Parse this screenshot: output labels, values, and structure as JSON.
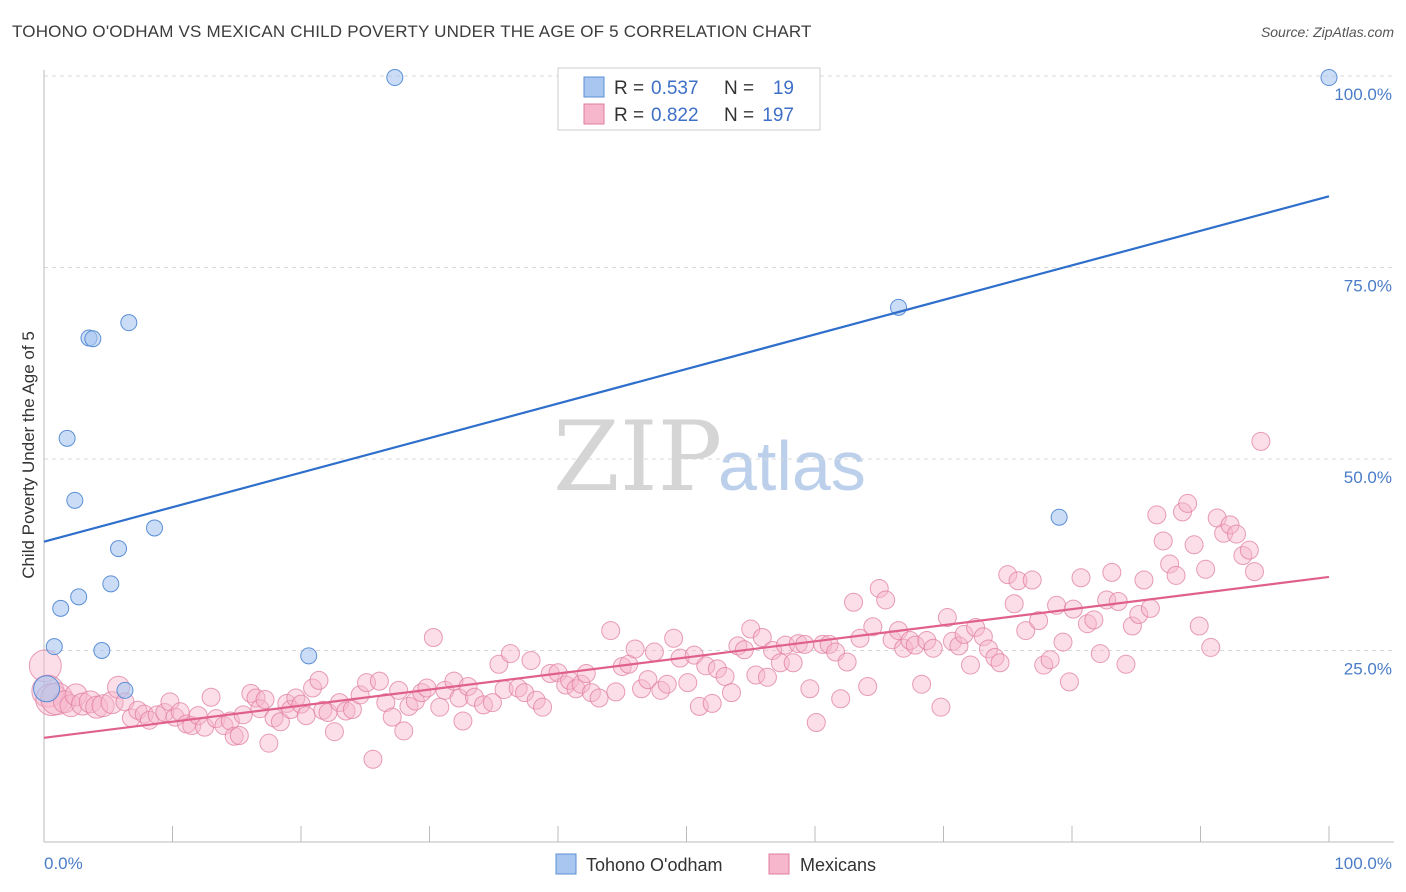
{
  "header": {
    "title": "TOHONO O'ODHAM VS MEXICAN CHILD POVERTY UNDER THE AGE OF 5 CORRELATION CHART",
    "source": "Source: ZipAtlas.com"
  },
  "watermark": {
    "zip": "ZIP",
    "atlas": "atlas"
  },
  "colors": {
    "blue_fill": "#a9c6f0",
    "blue_stroke": "#5b8fd6",
    "blue_line": "#2f6fcc",
    "pink_fill": "#f6b6cb",
    "pink_stroke": "#e07ea0",
    "pink_line": "#e0608c",
    "tick_label": "#4a7cc7",
    "grid": "#d8d8d8"
  },
  "legend": {
    "rows": [
      {
        "r_label": "R = ",
        "r_value": "0.537",
        "n_label": "N = ",
        "n_value": "19",
        "series": "blue"
      },
      {
        "r_label": "R = ",
        "r_value": "0.822",
        "n_label": "N = ",
        "n_value": "197",
        "series": "pink"
      }
    ]
  },
  "chart_data": {
    "type": "scatter",
    "title": "TOHONO O'ODHAM VS MEXICAN CHILD POVERTY UNDER THE AGE OF 5 CORRELATION CHART",
    "xlabel": "",
    "ylabel": "Child Poverty Under the Age of 5",
    "xlim": [
      0,
      100
    ],
    "ylim": [
      0,
      100
    ],
    "x_tick_labels": [
      "0.0%",
      "100.0%"
    ],
    "y_ticks": [
      {
        "value": 25,
        "label": "25.0%"
      },
      {
        "value": 50,
        "label": "50.0%"
      },
      {
        "value": 75,
        "label": "75.0%"
      },
      {
        "value": 100,
        "label": "100.0%"
      }
    ],
    "grid": "horizontal dashed",
    "legend_position": "top-center",
    "series": [
      {
        "name": "Tohono O'odham",
        "color": "#a9c6f0",
        "r": 0.537,
        "n": 19,
        "trend": [
          [
            0,
            39.2
          ],
          [
            100,
            84.3
          ]
        ],
        "points": [
          [
            0.2,
            20
          ],
          [
            0.8,
            25.5
          ],
          [
            1.3,
            30.5
          ],
          [
            1.8,
            52.7
          ],
          [
            2.4,
            44.6
          ],
          [
            2.7,
            32
          ],
          [
            3.5,
            65.8
          ],
          [
            3.8,
            65.7
          ],
          [
            4.5,
            25
          ],
          [
            5.2,
            33.7
          ],
          [
            5.8,
            38.3
          ],
          [
            6.3,
            19.8
          ],
          [
            6.6,
            67.8
          ],
          [
            8.6,
            41
          ],
          [
            20.6,
            24.3
          ],
          [
            27.3,
            99.8
          ],
          [
            66.5,
            69.8
          ],
          [
            79,
            42.4
          ],
          [
            100,
            99.8
          ]
        ]
      },
      {
        "name": "Mexicans",
        "color": "#f6b6cb",
        "r": 0.822,
        "n": 197,
        "trend": [
          [
            0,
            13.6
          ],
          [
            100,
            34.6
          ]
        ],
        "points": [
          [
            0.1,
            23
          ],
          [
            0.3,
            19.7
          ],
          [
            0.6,
            18.6
          ],
          [
            1,
            18.7
          ],
          [
            1.6,
            18.3
          ],
          [
            2.1,
            17.8
          ],
          [
            2.5,
            19.2
          ],
          [
            3,
            18
          ],
          [
            3.6,
            18.3
          ],
          [
            4.1,
            17.6
          ],
          [
            4.6,
            17.8
          ],
          [
            5.3,
            18.2
          ],
          [
            5.8,
            20.2
          ],
          [
            6.3,
            18.3
          ],
          [
            6.8,
            16.2
          ],
          [
            7.3,
            17.2
          ],
          [
            7.8,
            16.7
          ],
          [
            8.2,
            15.9
          ],
          [
            8.8,
            16.6
          ],
          [
            9.4,
            16.9
          ],
          [
            9.8,
            18.3
          ],
          [
            10.2,
            16.3
          ],
          [
            10.6,
            17
          ],
          [
            11.1,
            15.4
          ],
          [
            11.5,
            15.2
          ],
          [
            12,
            16.5
          ],
          [
            12.5,
            15
          ],
          [
            13,
            18.9
          ],
          [
            13.4,
            16.1
          ],
          [
            14,
            15.2
          ],
          [
            14.5,
            15.8
          ],
          [
            14.8,
            13.8
          ],
          [
            15.2,
            13.9
          ],
          [
            15.5,
            16.6
          ],
          [
            16.1,
            19.4
          ],
          [
            16.5,
            18.8
          ],
          [
            16.8,
            17.4
          ],
          [
            17.2,
            18.6
          ],
          [
            17.5,
            12.9
          ],
          [
            17.9,
            16.2
          ],
          [
            18.4,
            15.7
          ],
          [
            18.9,
            18.1
          ],
          [
            19.2,
            17.3
          ],
          [
            19.6,
            18.8
          ],
          [
            20,
            18
          ],
          [
            20.4,
            16.5
          ],
          [
            20.9,
            20.1
          ],
          [
            21.4,
            21.1
          ],
          [
            21.7,
            17.2
          ],
          [
            22.1,
            16.9
          ],
          [
            22.6,
            14.4
          ],
          [
            23,
            18.2
          ],
          [
            23.5,
            17.1
          ],
          [
            24,
            17.3
          ],
          [
            24.6,
            19.2
          ],
          [
            25.1,
            20.8
          ],
          [
            25.6,
            10.8
          ],
          [
            26.1,
            21
          ],
          [
            26.6,
            18.2
          ],
          [
            27.1,
            16.3
          ],
          [
            27.6,
            19.8
          ],
          [
            28,
            14.5
          ],
          [
            28.4,
            17.7
          ],
          [
            28.9,
            18.4
          ],
          [
            29.4,
            19.5
          ],
          [
            29.8,
            20.1
          ],
          [
            30.3,
            26.7
          ],
          [
            30.8,
            17.6
          ],
          [
            31.2,
            19.8
          ],
          [
            31.9,
            21
          ],
          [
            32.3,
            18.8
          ],
          [
            32.6,
            15.8
          ],
          [
            33,
            20.3
          ],
          [
            33.5,
            18.9
          ],
          [
            34.2,
            17.9
          ],
          [
            34.9,
            18.2
          ],
          [
            35.4,
            23.2
          ],
          [
            35.8,
            19.9
          ],
          [
            36.3,
            24.6
          ],
          [
            36.9,
            20.1
          ],
          [
            37.4,
            19.5
          ],
          [
            37.9,
            23.7
          ],
          [
            38.3,
            18.5
          ],
          [
            38.8,
            17.6
          ],
          [
            39.4,
            22
          ],
          [
            40,
            22.1
          ],
          [
            40.6,
            20.5
          ],
          [
            40.9,
            21.1
          ],
          [
            41.4,
            20
          ],
          [
            41.8,
            20.6
          ],
          [
            42.2,
            22
          ],
          [
            42.6,
            19.5
          ],
          [
            43.2,
            18.8
          ],
          [
            44.1,
            27.6
          ],
          [
            44.5,
            19.6
          ],
          [
            45,
            22.9
          ],
          [
            45.5,
            23.2
          ],
          [
            46,
            25.2
          ],
          [
            46.5,
            20
          ],
          [
            47,
            21.2
          ],
          [
            47.5,
            24.8
          ],
          [
            48,
            19.8
          ],
          [
            48.5,
            20.6
          ],
          [
            49,
            26.6
          ],
          [
            49.5,
            24
          ],
          [
            50.1,
            20.8
          ],
          [
            50.6,
            24.4
          ],
          [
            51,
            17.7
          ],
          [
            51.5,
            23
          ],
          [
            52,
            18.1
          ],
          [
            52.4,
            22.6
          ],
          [
            53,
            21.6
          ],
          [
            53.5,
            19.5
          ],
          [
            54,
            25.6
          ],
          [
            54.5,
            25.1
          ],
          [
            55,
            27.8
          ],
          [
            55.4,
            21.8
          ],
          [
            55.9,
            26.7
          ],
          [
            56.3,
            21.5
          ],
          [
            56.7,
            25
          ],
          [
            57.3,
            23.4
          ],
          [
            57.7,
            25.7
          ],
          [
            58.3,
            23.4
          ],
          [
            58.7,
            25.9
          ],
          [
            59.2,
            25.8
          ],
          [
            59.6,
            20
          ],
          [
            60.1,
            15.6
          ],
          [
            60.6,
            25.8
          ],
          [
            61.1,
            25.8
          ],
          [
            61.6,
            24.8
          ],
          [
            62,
            18.7
          ],
          [
            62.5,
            23.5
          ],
          [
            63,
            31.3
          ],
          [
            63.5,
            26.6
          ],
          [
            64.1,
            20.3
          ],
          [
            64.5,
            28.1
          ],
          [
            65,
            33.1
          ],
          [
            65.5,
            31.6
          ],
          [
            66,
            26.4
          ],
          [
            66.5,
            27.6
          ],
          [
            66.9,
            25.3
          ],
          [
            67.4,
            26.3
          ],
          [
            67.8,
            25.7
          ],
          [
            68.3,
            20.6
          ],
          [
            68.7,
            26.3
          ],
          [
            69.2,
            25.3
          ],
          [
            69.8,
            17.6
          ],
          [
            70.3,
            29.3
          ],
          [
            70.7,
            26.2
          ],
          [
            71.2,
            25.6
          ],
          [
            71.6,
            27.1
          ],
          [
            72.1,
            23.1
          ],
          [
            72.5,
            28
          ],
          [
            73.1,
            26.8
          ],
          [
            73.5,
            25.2
          ],
          [
            74,
            24.1
          ],
          [
            74.4,
            23.4
          ],
          [
            75,
            34.9
          ],
          [
            75.5,
            31.1
          ],
          [
            75.8,
            34.1
          ],
          [
            76.4,
            27.6
          ],
          [
            76.9,
            34.2
          ],
          [
            77.4,
            28.9
          ],
          [
            77.8,
            23.1
          ],
          [
            78.3,
            23.8
          ],
          [
            78.8,
            30.9
          ],
          [
            79.3,
            26.1
          ],
          [
            79.8,
            20.9
          ],
          [
            80.1,
            30.4
          ],
          [
            80.7,
            34.5
          ],
          [
            81.2,
            28.5
          ],
          [
            81.7,
            29
          ],
          [
            82.2,
            24.6
          ],
          [
            82.7,
            31.6
          ],
          [
            83.1,
            35.2
          ],
          [
            83.6,
            31.4
          ],
          [
            84.2,
            23.2
          ],
          [
            84.7,
            28.2
          ],
          [
            85.2,
            29.7
          ],
          [
            85.6,
            34.2
          ],
          [
            86.1,
            30.5
          ],
          [
            86.6,
            42.7
          ],
          [
            87.1,
            39.3
          ],
          [
            87.6,
            36.3
          ],
          [
            88.1,
            34.8
          ],
          [
            88.6,
            43.1
          ],
          [
            89,
            44.2
          ],
          [
            89.5,
            38.8
          ],
          [
            89.9,
            28.2
          ],
          [
            90.4,
            35.6
          ],
          [
            90.8,
            25.4
          ],
          [
            91.3,
            42.3
          ],
          [
            91.8,
            40.3
          ],
          [
            92.3,
            41.4
          ],
          [
            92.8,
            40.2
          ],
          [
            93.3,
            37.4
          ],
          [
            93.8,
            38.1
          ],
          [
            94.2,
            35.3
          ],
          [
            94.7,
            52.3
          ]
        ]
      }
    ]
  },
  "bottom_legend": {
    "items": [
      {
        "label": "Tohono O'odham",
        "series": "blue"
      },
      {
        "label": "Mexicans",
        "series": "pink"
      }
    ]
  }
}
